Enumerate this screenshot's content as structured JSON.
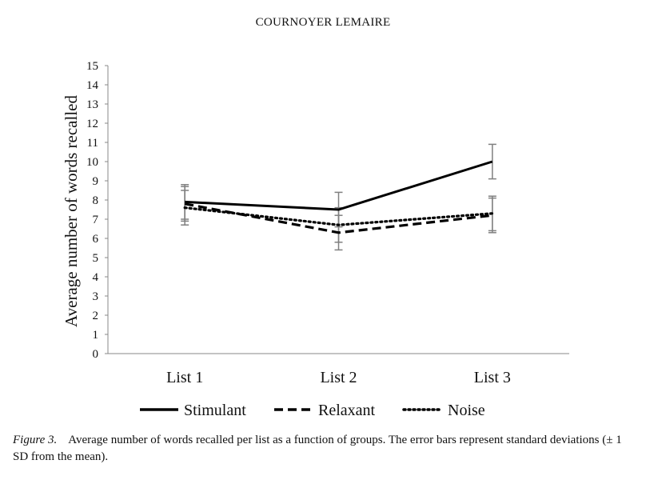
{
  "header": {
    "running_head": "COURNOYER LEMAIRE"
  },
  "chart_data": {
    "type": "line",
    "ylabel": "Average number of words recalled",
    "xlabel": "",
    "ylim": [
      0,
      15
    ],
    "yticks": [
      0,
      1,
      2,
      3,
      4,
      5,
      6,
      7,
      8,
      9,
      10,
      11,
      12,
      13,
      14,
      15
    ],
    "categories": [
      "List 1",
      "List 2",
      "List 3"
    ],
    "series": [
      {
        "name": "Stimulant",
        "style": "solid",
        "values": [
          7.9,
          7.5,
          10.0
        ],
        "sd": [
          0.9,
          0.9,
          0.9
        ]
      },
      {
        "name": "Relaxant",
        "style": "dashed",
        "values": [
          7.8,
          6.3,
          7.2
        ],
        "sd": [
          0.9,
          0.9,
          0.9
        ]
      },
      {
        "name": "Noise",
        "style": "dotted",
        "values": [
          7.6,
          6.7,
          7.3
        ],
        "sd": [
          0.9,
          0.9,
          0.9
        ]
      }
    ],
    "legend_position": "bottom",
    "grid": false,
    "colors": {
      "line": "#000000",
      "errorbar": "#808080"
    }
  },
  "caption": {
    "label": "Figure 3.",
    "text": "Average number of words recalled per list as a function of groups. The error bars represent standard deviations (± 1 SD from the mean)."
  }
}
